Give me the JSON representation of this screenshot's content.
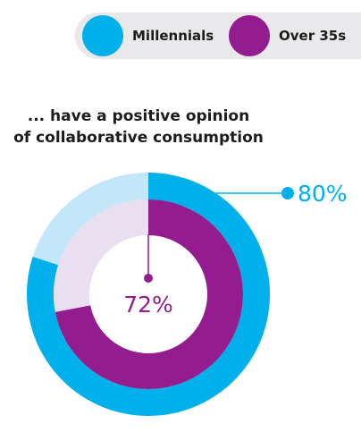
{
  "legend": {
    "items": [
      {
        "label": "Millennials",
        "color": "#00b0ea"
      },
      {
        "label": "Over 35s",
        "color": "#931c8e"
      }
    ]
  },
  "chart_data": {
    "type": "pie",
    "title_lines": [
      "... have a positive opinion",
      "of collaborative consumption"
    ],
    "series": [
      {
        "name": "Millennials",
        "value": 80,
        "label": "80%",
        "color": "#00b0ea",
        "remainder_color": "#c3e6f9"
      },
      {
        "name": "Over 35s",
        "value": 72,
        "label": "72%",
        "color": "#931c8e",
        "remainder_color": "#eadff0"
      }
    ]
  }
}
